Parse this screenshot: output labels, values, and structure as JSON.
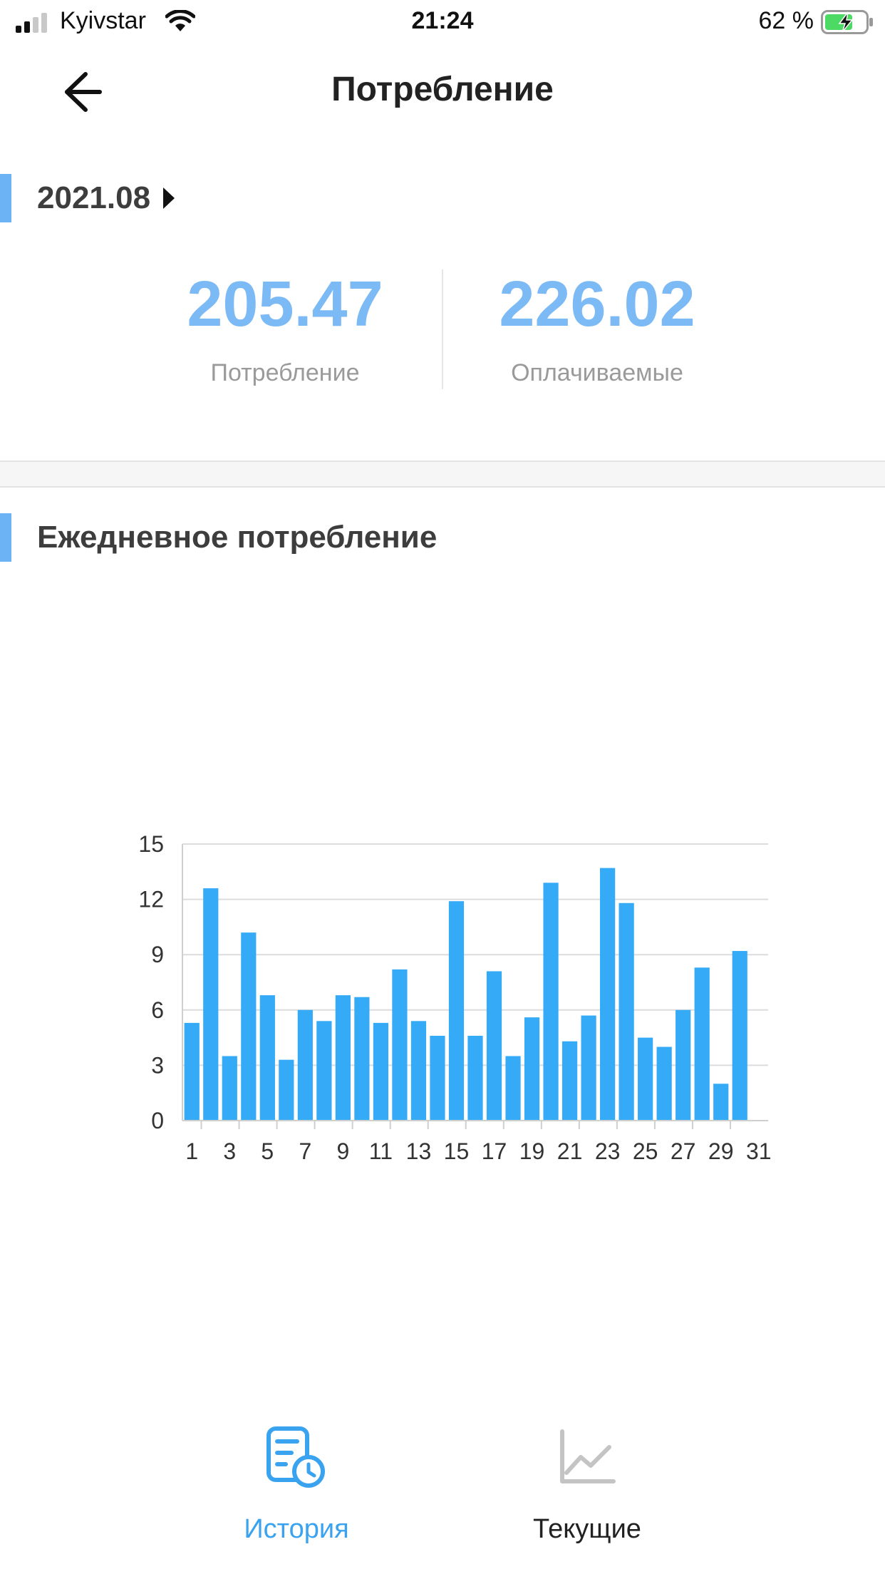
{
  "status_bar": {
    "carrier": "Kyivstar",
    "time": "21:24",
    "battery": "62 %"
  },
  "nav": {
    "title": "Потребление"
  },
  "period": {
    "label": "2021.08"
  },
  "summary": {
    "consumption_value": "205.47",
    "consumption_label": "Потребление",
    "billable_value": "226.02",
    "billable_label": "Оплачиваемые"
  },
  "daily": {
    "title": "Ежедневное потребление"
  },
  "colors": {
    "accent": "#6bb3f5",
    "stat_value": "#7cbaf6",
    "bar": "#35abf8",
    "tab_active": "#3aa3f0",
    "tab_inactive": "#222222"
  },
  "chart_data": {
    "type": "bar",
    "categories": [
      "1",
      "2",
      "3",
      "4",
      "5",
      "6",
      "7",
      "8",
      "9",
      "10",
      "11",
      "12",
      "13",
      "14",
      "15",
      "16",
      "17",
      "18",
      "19",
      "20",
      "21",
      "22",
      "23",
      "24",
      "25",
      "26",
      "27",
      "28",
      "29",
      "30",
      "31"
    ],
    "values": [
      5.3,
      12.6,
      3.5,
      10.2,
      6.8,
      3.3,
      6.0,
      5.4,
      6.8,
      6.7,
      5.3,
      8.2,
      5.4,
      4.6,
      11.9,
      4.6,
      8.1,
      3.5,
      5.6,
      12.9,
      4.3,
      5.7,
      13.7,
      11.8,
      4.5,
      4.0,
      6.0,
      8.3,
      2.0,
      9.2,
      0
    ],
    "x_tick_labels": [
      "1",
      "3",
      "5",
      "7",
      "9",
      "11",
      "13",
      "15",
      "17",
      "19",
      "21",
      "23",
      "25",
      "27",
      "29",
      "31"
    ],
    "y_ticks": [
      "0",
      "3",
      "6",
      "9",
      "12",
      "15"
    ],
    "ylim": [
      0,
      15
    ],
    "grid": true,
    "legend": "none",
    "title": "",
    "xlabel": "",
    "ylabel": ""
  },
  "tabs": [
    {
      "label": "История",
      "icon": "history-document-clock-icon",
      "active": true
    },
    {
      "label": "Текущие",
      "icon": "line-chart-icon",
      "active": false
    }
  ]
}
